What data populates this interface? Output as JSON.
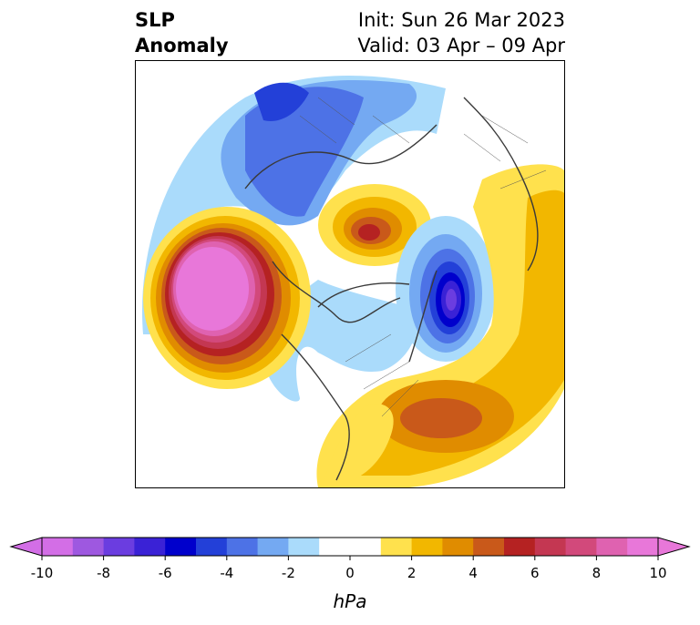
{
  "title": {
    "left_line1": "SLP",
    "left_line2": "Anomaly",
    "right_line1": "Init: Sun 26 Mar 2023",
    "right_line2": "Valid: 03 Apr – 09 Apr"
  },
  "colorbar": {
    "unit": "hPa",
    "tick_labels": [
      "-10",
      "-8",
      "-6",
      "-4",
      "-2",
      "0",
      "2",
      "4",
      "6",
      "8",
      "10"
    ],
    "colors": [
      "#d36ee6",
      "#9e58e0",
      "#6b3de0",
      "#3a22d6",
      "#0000cc",
      "#2340d8",
      "#4d72e6",
      "#74a9f2",
      "#aadbfb",
      "#ffffff",
      "#ffffff",
      "#ffe14d",
      "#f2b700",
      "#e08c00",
      "#c9591a",
      "#b52222",
      "#c43752",
      "#d2497b",
      "#df62b0",
      "#e877d9"
    ],
    "under_color": "#d36ee6",
    "over_color": "#e877d9"
  }
}
